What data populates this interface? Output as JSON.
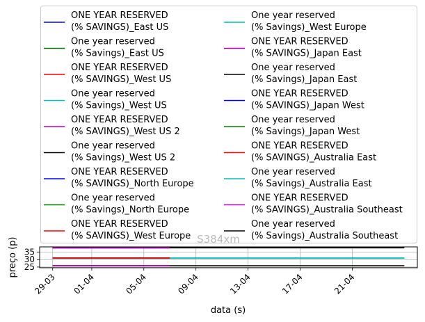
{
  "chart_data": {
    "type": "line",
    "title": "S384xm",
    "xlabel": "data (s)",
    "ylabel": "preço (p)",
    "xlim": [
      "2020-03-28",
      "2020-04-26"
    ],
    "ylim": [
      24.5,
      38.5
    ],
    "x_ticks": [
      {
        "date": "2020-03-29",
        "label": "29-03"
      },
      {
        "date": "2020-04-01",
        "label": "01-04"
      },
      {
        "date": "2020-04-05",
        "label": "05-04"
      },
      {
        "date": "2020-04-09",
        "label": "09-04"
      },
      {
        "date": "2020-04-13",
        "label": "13-04"
      },
      {
        "date": "2020-04-17",
        "label": "17-04"
      },
      {
        "date": "2020-04-21",
        "label": "21-04"
      }
    ],
    "y_ticks": [
      25,
      30,
      35
    ],
    "grid": true,
    "legend_placement": "above plot, two columns",
    "series": [
      {
        "name": "ONE YEAR RESERVED\n(% SAVINGS)_East US",
        "color": "#0000ff",
        "x": [
          "2020-03-29",
          "2020-04-07"
        ],
        "y": [
          37.9,
          37.9
        ]
      },
      {
        "name": "One year reserved\n(% Savings)_East US",
        "color": "#008000",
        "x": [
          "2020-03-29",
          "2020-04-07"
        ],
        "y": [
          37.9,
          37.9
        ]
      },
      {
        "name": "ONE YEAR RESERVED\n(% SAVINGS)_West US",
        "color": "#ff0000",
        "x": [
          "2020-03-29",
          "2020-04-07"
        ],
        "y": [
          31.0,
          31.0
        ]
      },
      {
        "name": "One year reserved\n(% Savings)_West US",
        "color": "#00bfbf",
        "x": [
          "2020-03-29",
          "2020-04-07"
        ],
        "y": [
          31.0,
          31.0
        ]
      },
      {
        "name": "ONE YEAR RESERVED\n(% SAVINGS)_West US 2",
        "color": "#bf00bf",
        "x": [
          "2020-03-29",
          "2020-04-07"
        ],
        "y": [
          25.9,
          25.9
        ]
      },
      {
        "name": "One year reserved\n(% Savings)_West US 2",
        "color": "#000000",
        "x": [
          "2020-03-29",
          "2020-04-07"
        ],
        "y": [
          25.9,
          25.9
        ]
      },
      {
        "name": "ONE YEAR RESERVED\n(% SAVINGS)_North Europe",
        "color": "#0000ff",
        "x": [
          "2020-03-29",
          "2020-04-07"
        ],
        "y": [
          37.9,
          37.9
        ]
      },
      {
        "name": "One year reserved\n(% Savings)_North Europe",
        "color": "#008000",
        "x": [
          "2020-03-29",
          "2020-04-07"
        ],
        "y": [
          37.9,
          37.9
        ]
      },
      {
        "name": "ONE YEAR RESERVED\n(% SAVINGS)_West Europe",
        "color": "#ff0000",
        "x": [
          "2020-03-29",
          "2020-04-07"
        ],
        "y": [
          31.0,
          31.0
        ]
      },
      {
        "name": "One year reserved\n(% Savings)_West Europe",
        "color": "#00bfbf",
        "x": [
          "2020-04-07",
          "2020-04-25"
        ],
        "y": [
          31.0,
          31.0
        ]
      },
      {
        "name": "ONE YEAR RESERVED\n(% SAVINGS)_Japan East",
        "color": "#bf00bf",
        "x": [
          "2020-03-29",
          "2020-04-07"
        ],
        "y": [
          37.9,
          37.9
        ]
      },
      {
        "name": "One year reserved\n(% Savings)_Japan East",
        "color": "#000000",
        "x": [
          "2020-04-07",
          "2020-04-25"
        ],
        "y": [
          37.9,
          37.9
        ]
      },
      {
        "name": "ONE YEAR RESERVED\n(% SAVINGS)_Japan West",
        "color": "#0000ff",
        "x": [
          "2020-03-29",
          "2020-04-07"
        ],
        "y": [
          31.0,
          31.0
        ]
      },
      {
        "name": "One year reserved\n(% Savings)_Japan West",
        "color": "#008000",
        "x": [
          "2020-03-29",
          "2020-04-07"
        ],
        "y": [
          31.0,
          31.0
        ]
      },
      {
        "name": "ONE YEAR RESERVED\n(% SAVINGS)_Australia East",
        "color": "#ff0000",
        "x": [
          "2020-03-29",
          "2020-04-07"
        ],
        "y": [
          31.0,
          31.0
        ]
      },
      {
        "name": "One year reserved\n(% Savings)_Australia East",
        "color": "#00bfbf",
        "x": [
          "2020-04-07",
          "2020-04-25"
        ],
        "y": [
          31.0,
          31.0
        ]
      },
      {
        "name": "ONE YEAR RESERVED\n(% SAVINGS)_Australia Southeast",
        "color": "#bf00bf",
        "x": [
          "2020-03-29",
          "2020-04-07"
        ],
        "y": [
          25.9,
          25.9
        ]
      },
      {
        "name": "One year reserved\n(% Savings)_Australia Southeast",
        "color": "#000000",
        "x": [
          "2020-04-07",
          "2020-04-25"
        ],
        "y": [
          25.9,
          25.9
        ]
      }
    ]
  }
}
